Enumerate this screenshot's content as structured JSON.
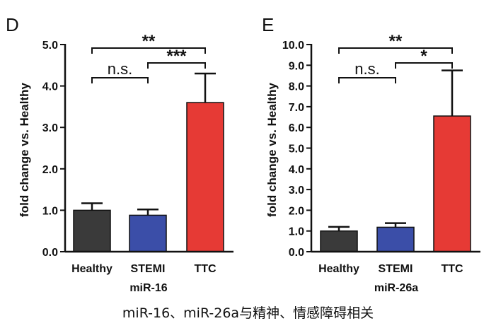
{
  "caption": "miR-16、miR-26a与精神、情感障碍相关",
  "colors": {
    "axis": "#111111",
    "errorbar": "#111111",
    "bar_outline": "#111111"
  },
  "chart_data": [
    {
      "type": "bar",
      "panel_label": "D",
      "title": "",
      "xlabel": "miR-16",
      "ylabel": "fold change vs. Healthy",
      "ylim": [
        0,
        5
      ],
      "yticks": [
        0,
        1,
        2,
        3,
        4,
        5
      ],
      "ytick_labels": [
        "0.0",
        "1.0",
        "2.0",
        "3.0",
        "4.0",
        "5.0"
      ],
      "categories": [
        "Healthy",
        "STEMI",
        "TTC"
      ],
      "values": [
        1.0,
        0.88,
        3.6
      ],
      "errors": [
        0.17,
        0.14,
        0.7
      ],
      "bar_colors": [
        "#3a3a3a",
        "#3b4ea8",
        "#e63a35"
      ],
      "significance": [
        {
          "from": 0,
          "to": 2,
          "label": "**",
          "level": 1
        },
        {
          "from": 1,
          "to": 2,
          "label": "***",
          "level": 2
        },
        {
          "from": 0,
          "to": 1,
          "label": "n.s.",
          "level": 3
        }
      ]
    },
    {
      "type": "bar",
      "panel_label": "E",
      "title": "",
      "xlabel": "miR-26a",
      "ylabel": "fold change vs. Healthy",
      "ylim": [
        0,
        10
      ],
      "yticks": [
        0,
        1,
        2,
        3,
        4,
        5,
        6,
        7,
        8,
        9,
        10
      ],
      "ytick_labels": [
        "0.0",
        "1.0",
        "2.0",
        "3.0",
        "4.0",
        "5.0",
        "6.0",
        "7.0",
        "8.0",
        "9.0",
        "10.0"
      ],
      "categories": [
        "Healthy",
        "STEMI",
        "TTC"
      ],
      "values": [
        1.0,
        1.18,
        6.55
      ],
      "errors": [
        0.2,
        0.2,
        2.2
      ],
      "bar_colors": [
        "#3a3a3a",
        "#3b4ea8",
        "#e63a35"
      ],
      "significance": [
        {
          "from": 0,
          "to": 2,
          "label": "**",
          "level": 1
        },
        {
          "from": 1,
          "to": 2,
          "label": "*",
          "level": 2
        },
        {
          "from": 0,
          "to": 1,
          "label": "n.s.",
          "level": 3
        }
      ]
    }
  ]
}
